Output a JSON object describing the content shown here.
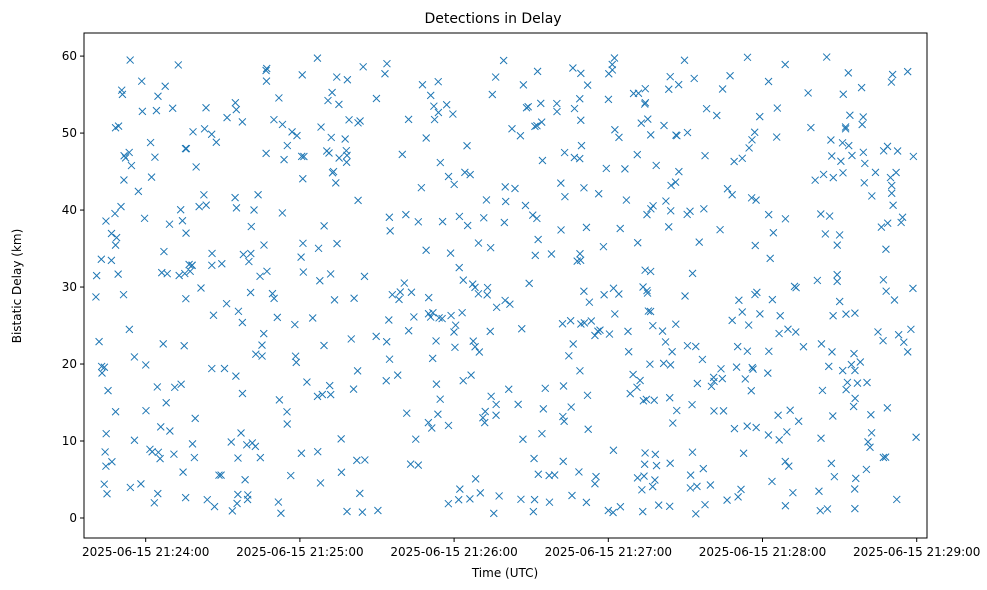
{
  "chart_data": {
    "type": "scatter",
    "title": "Detections in Delay",
    "xlabel": "Time (UTC)",
    "ylabel": "Bistatic Delay (km)",
    "marker": "x",
    "color": "#1f77b4",
    "grid": false,
    "legend": "none",
    "x_ticks": [
      "2025-06-15 21:24:00",
      "2025-06-15 21:25:00",
      "2025-06-15 21:26:00",
      "2025-06-15 21:27:00",
      "2025-06-15 21:28:00",
      "2025-06-15 21:29:00"
    ],
    "y_ticks": [
      "0",
      "10",
      "20",
      "30",
      "40",
      "50",
      "60"
    ],
    "xlim": [
      "2025-06-15 21:23:36",
      "2025-06-15 21:29:04"
    ],
    "ylim": [
      -2.6,
      63
    ],
    "x_range": [
      "2025-06-15 21:23:40",
      "2025-06-15 21:29:00"
    ],
    "y_range": [
      0.5,
      60
    ],
    "n_points": 700
  }
}
